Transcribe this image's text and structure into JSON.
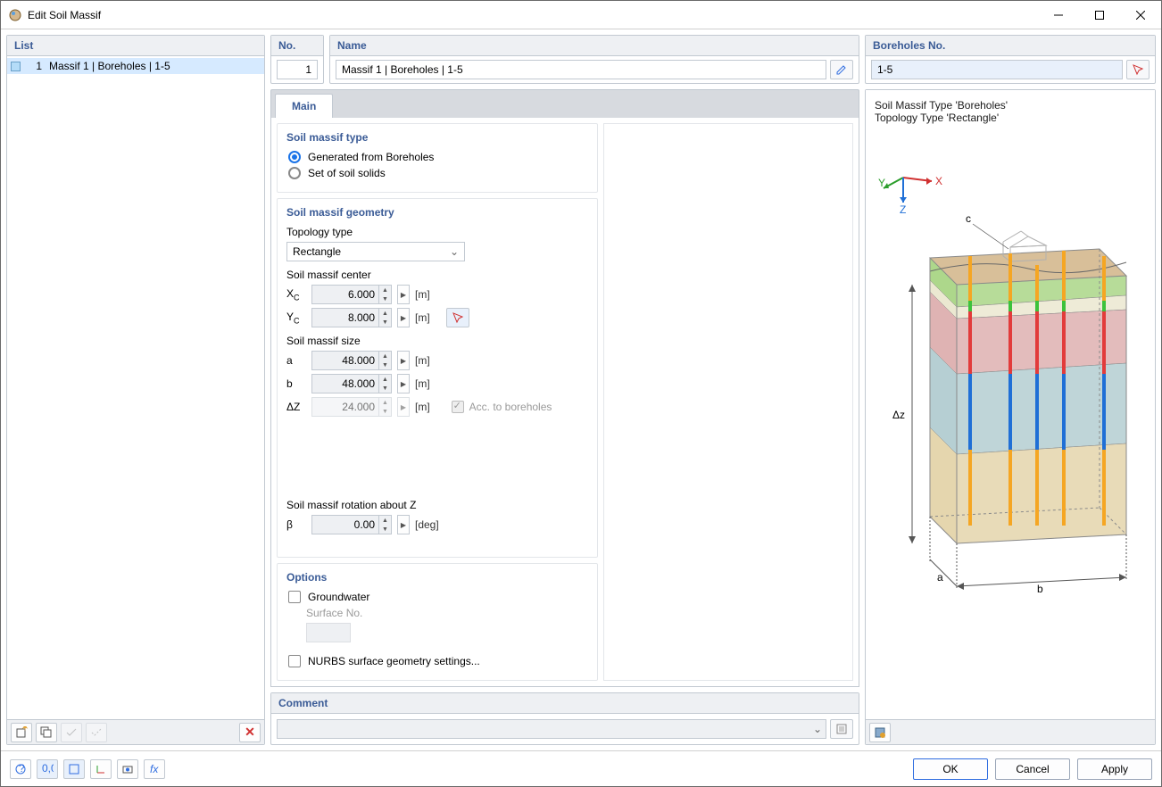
{
  "window": {
    "title": "Edit Soil Massif"
  },
  "left": {
    "header": "List",
    "items": [
      {
        "index": "1",
        "label": "Massif 1 | Boreholes | 1-5"
      }
    ]
  },
  "top": {
    "no_label": "No.",
    "no_value": "1",
    "name_label": "Name",
    "name_value": "Massif 1 | Boreholes | 1-5",
    "boreholes_label": "Boreholes No.",
    "boreholes_value": "1-5"
  },
  "tabs": {
    "main": "Main"
  },
  "type_group": {
    "title": "Soil massif type",
    "opt_boreholes": "Generated from Boreholes",
    "opt_set": "Set of soil solids"
  },
  "geom_group": {
    "title": "Soil massif geometry",
    "topology_label": "Topology type",
    "topology_value": "Rectangle",
    "center_label": "Soil massif center",
    "xc_label": "Xc",
    "xc_value": "6.000",
    "xc_unit": "[m]",
    "yc_label": "Yc",
    "yc_value": "8.000",
    "yc_unit": "[m]",
    "size_label": "Soil massif size",
    "a_label": "a",
    "a_value": "48.000",
    "a_unit": "[m]",
    "b_label": "b",
    "b_value": "48.000",
    "b_unit": "[m]",
    "dz_label": "ΔZ",
    "dz_value": "24.000",
    "dz_unit": "[m]",
    "acc_label": "Acc. to boreholes",
    "rot_label": "Soil massif rotation about Z",
    "beta_label": "β",
    "beta_value": "0.00",
    "beta_unit": "[deg]"
  },
  "options_group": {
    "title": "Options",
    "groundwater": "Groundwater",
    "surface_no": "Surface No.",
    "nurbs": "NURBS surface geometry settings..."
  },
  "comment": {
    "title": "Comment"
  },
  "preview": {
    "line1": "Soil Massif Type 'Boreholes'",
    "line2": "Topology Type 'Rectangle'",
    "axis_x": "X",
    "axis_y": "Y",
    "axis_z": "Z",
    "dim_a": "a",
    "dim_b": "b",
    "dim_c": "c",
    "dim_dz": "Δz",
    "colors": {
      "layer_top": "#d4b88e",
      "layer_green": "#9fd077",
      "layer_cream": "#e8e4c9",
      "layer_red": "#d9a6a6",
      "layer_teal": "#a9c7cb",
      "layer_sand": "#e0cfa0",
      "bore_orange": "#f5a623",
      "bore_red": "#e23b3b",
      "bore_blue": "#1f6fd6",
      "bore_green": "#3cc23c",
      "house": "#b0b0b0",
      "edge": "#8a8a8a"
    }
  },
  "footer": {
    "ok": "OK",
    "cancel": "Cancel",
    "apply": "Apply"
  }
}
